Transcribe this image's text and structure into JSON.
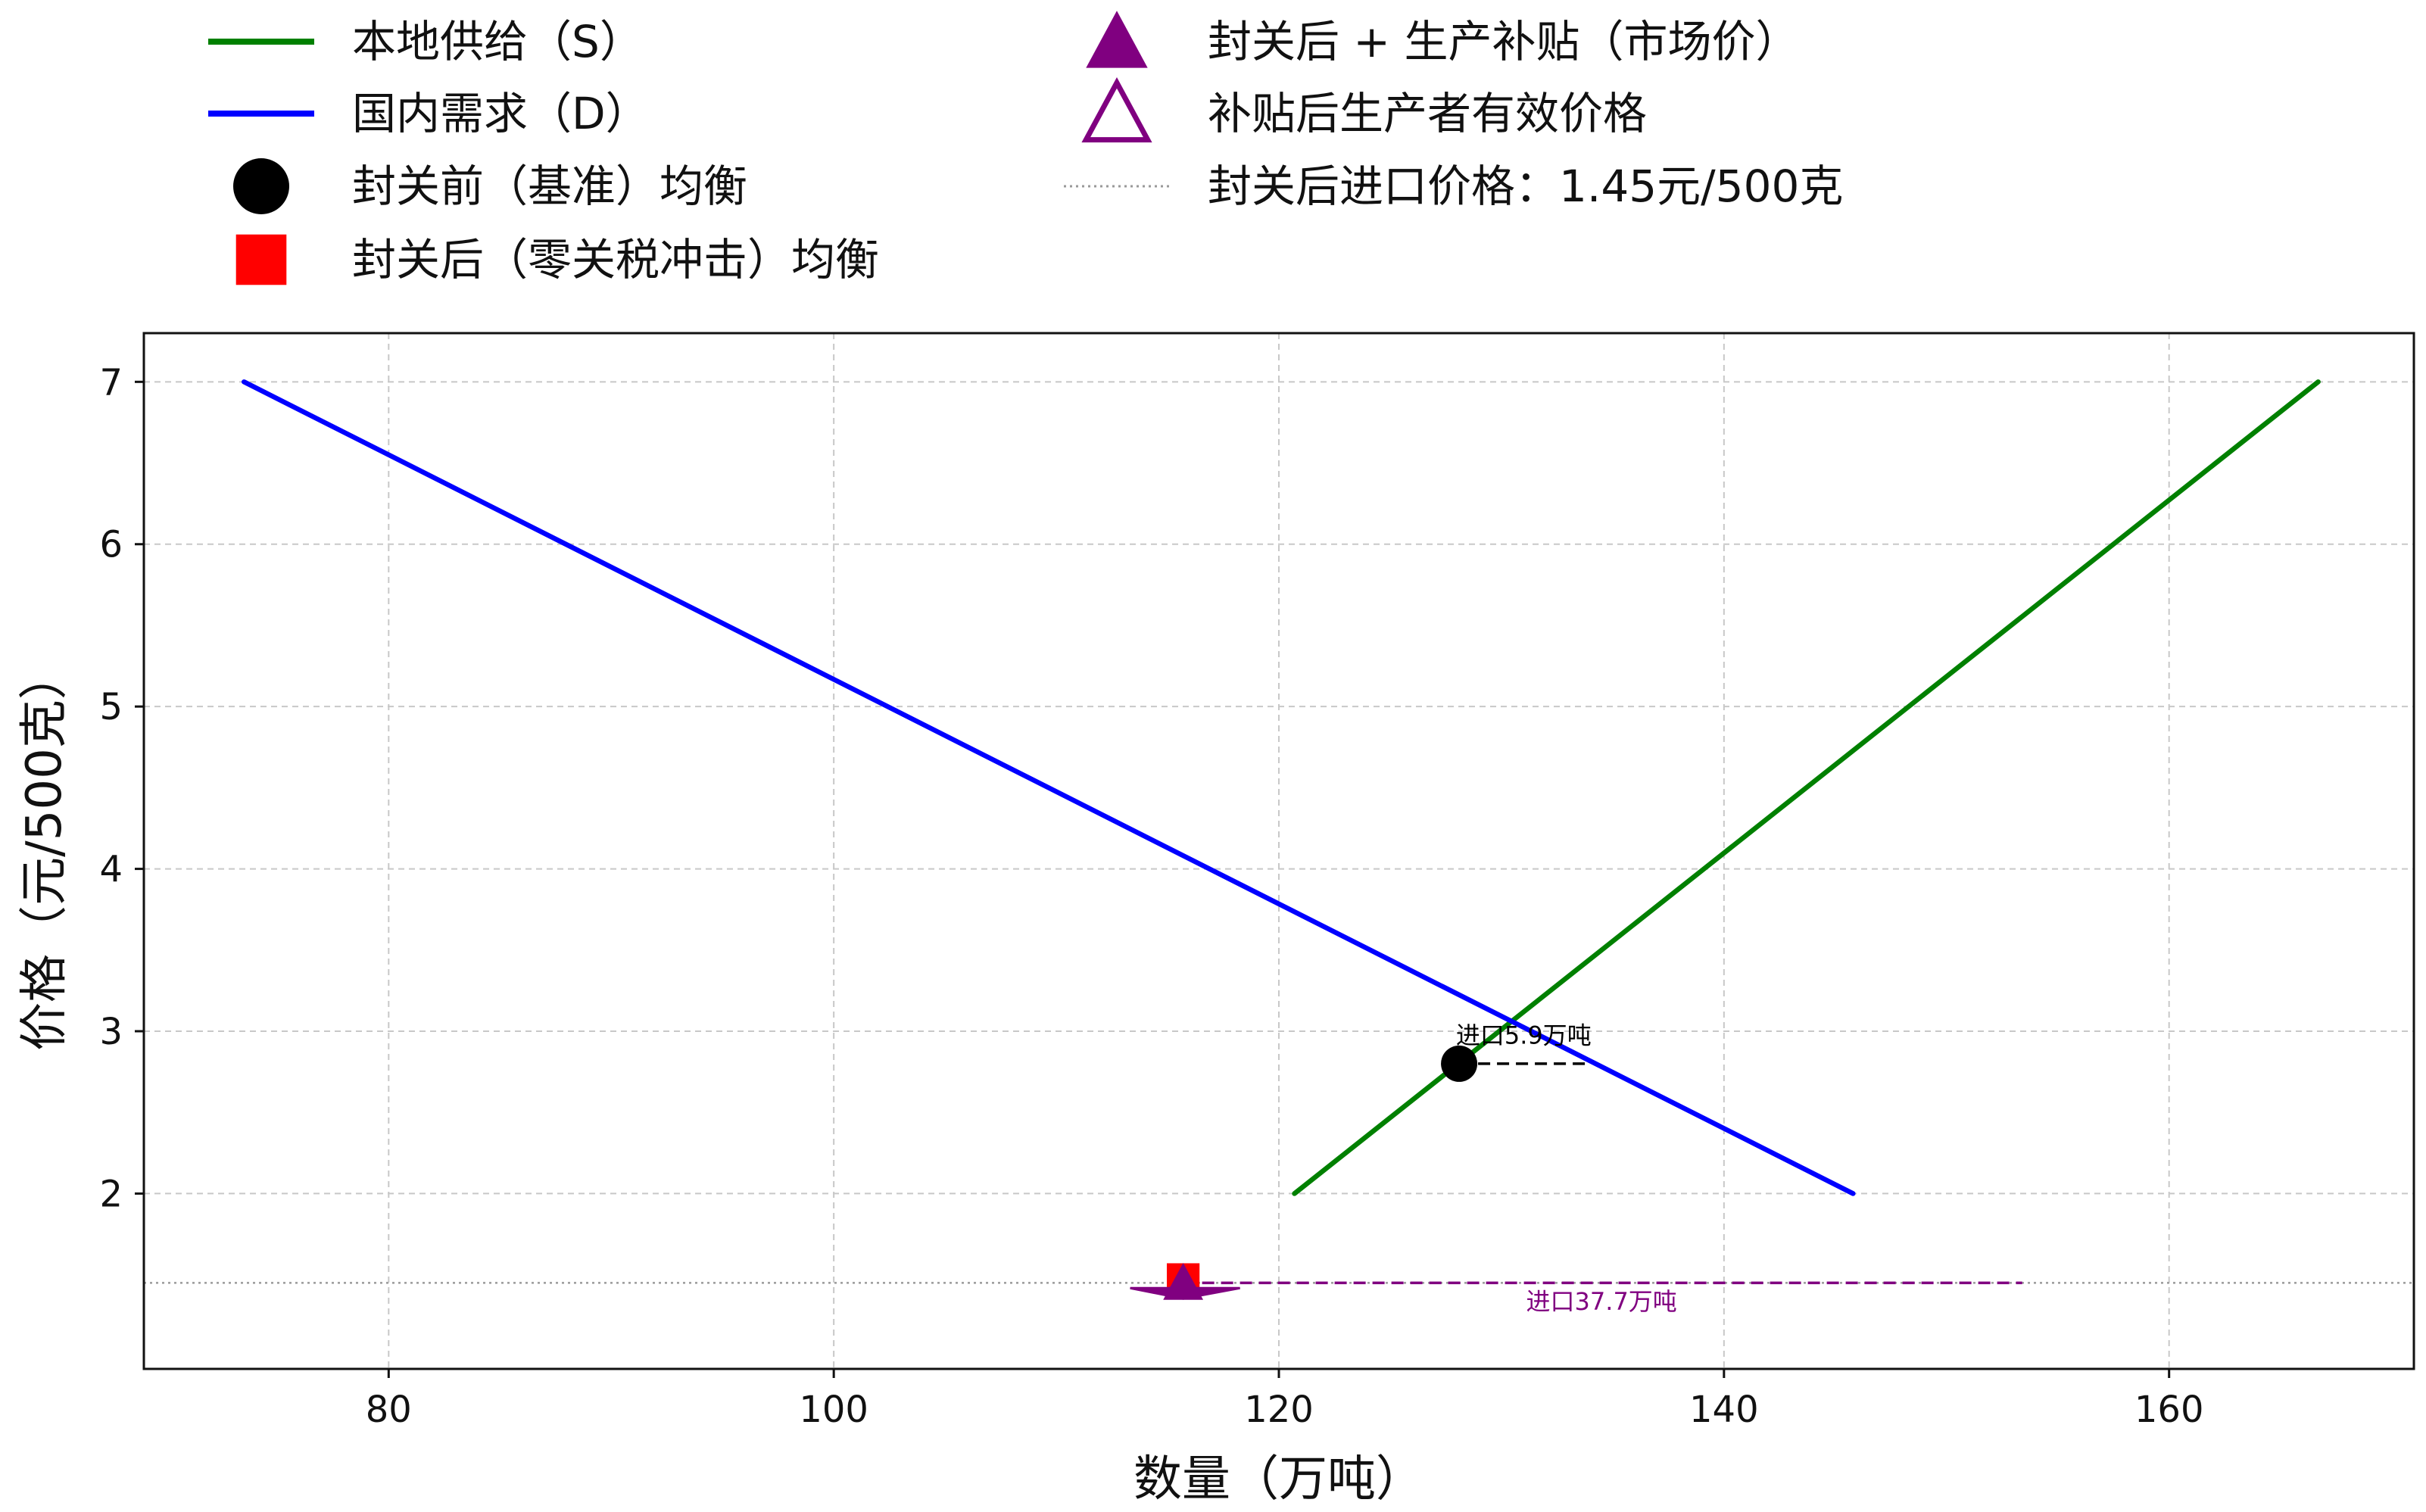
{
  "chart_data": {
    "type": "line",
    "xlabel": "数量（万吨）",
    "ylabel": "价格（元/500克）",
    "xlim": [
      69,
      171
    ],
    "ylim": [
      0.92,
      7.3
    ],
    "x_ticks": [
      80,
      100,
      120,
      140,
      160
    ],
    "y_ticks": [
      2,
      3,
      4,
      5,
      6,
      7
    ],
    "grid": true,
    "series": [
      {
        "name": "本地供给（S）",
        "color": "#008000",
        "points": [
          [
            120.7,
            2.0
          ],
          [
            166.7,
            7.0
          ]
        ]
      },
      {
        "name": "国内需求（D）",
        "color": "#0000ff",
        "points": [
          [
            73.5,
            7.0
          ],
          [
            145.8,
            2.0
          ]
        ]
      }
    ],
    "markers": [
      {
        "name": "封关前（基准）均衡",
        "shape": "circle-filled",
        "color": "#000000",
        "x": 128.1,
        "y": 2.8
      },
      {
        "name": "封关后（零关税冲击）均衡",
        "shape": "square-filled",
        "color": "#ff0000",
        "x": 115.7,
        "y": 1.47
      },
      {
        "name": "封关后 + 生产补贴（市场价）",
        "shape": "triangle-filled",
        "color": "#800080",
        "x": 115.7,
        "y": 1.45
      },
      {
        "name": "补贴后生产者有效价格",
        "shape": "triangle-open",
        "color": "#800080",
        "x": 115.7,
        "y": 1.39
      }
    ],
    "reference_lines": [
      {
        "name": "封关后进口价格：1.45元/500克",
        "y": 1.45,
        "style": "dotted",
        "color": "#888888"
      }
    ],
    "annotations": [
      {
        "text": "进口5.9万吨",
        "color": "#000000",
        "x_from": 128.1,
        "x_to": 134.0,
        "y": 2.8,
        "label_x": 131.0,
        "label_y": 2.97
      },
      {
        "text": "进口37.7万吨",
        "color": "#800080",
        "x_from": 115.7,
        "x_to": 153.4,
        "y": 1.45,
        "label_x": 134.5,
        "label_y": 1.33
      }
    ],
    "legend": {
      "placement": "top, two columns above plot",
      "entries": [
        {
          "label": "本地供给（S）",
          "symbol": "line",
          "color": "#008000"
        },
        {
          "label": "国内需求（D）",
          "symbol": "line",
          "color": "#0000ff"
        },
        {
          "label": "封关前（基准）均衡",
          "symbol": "circle-filled",
          "color": "#000000"
        },
        {
          "label": "封关后（零关税冲击）均衡",
          "symbol": "square-filled",
          "color": "#ff0000"
        },
        {
          "label": "封关后 + 生产补贴（市场价）",
          "symbol": "triangle-filled",
          "color": "#800080"
        },
        {
          "label": "补贴后生产者有效价格",
          "symbol": "triangle-open",
          "color": "#800080"
        },
        {
          "label": "封关后进口价格：1.45元/500克",
          "symbol": "dotted-line",
          "color": "#999999"
        }
      ]
    }
  }
}
